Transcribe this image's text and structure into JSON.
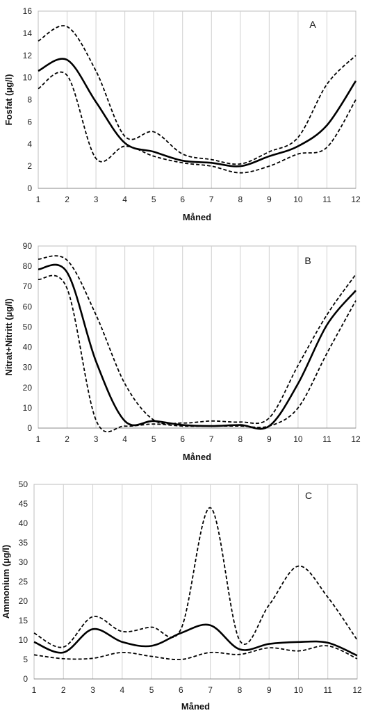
{
  "chart_data": [
    {
      "type": "line",
      "panel_label": "A",
      "xlabel": "Måned",
      "ylabel": "Fosfat (µg/l)",
      "x": [
        1,
        2,
        3,
        4,
        5,
        6,
        7,
        8,
        9,
        10,
        11,
        12
      ],
      "xlim": [
        1,
        12
      ],
      "ylim": [
        0,
        16
      ],
      "yticks": [
        0,
        2,
        4,
        6,
        8,
        10,
        12,
        14,
        16
      ],
      "grid": "vertical",
      "series": [
        {
          "style": "dashed",
          "values": [
            13.3,
            14.6,
            10.6,
            4.7,
            5.1,
            3.1,
            2.6,
            2.2,
            3.3,
            4.6,
            9.4,
            12.0
          ]
        },
        {
          "style": "solid",
          "values": [
            10.6,
            11.6,
            7.8,
            4.1,
            3.3,
            2.5,
            2.3,
            2.0,
            2.9,
            3.8,
            5.7,
            9.7
          ]
        },
        {
          "style": "dashed",
          "values": [
            9.0,
            10.2,
            2.7,
            3.8,
            2.9,
            2.3,
            2.0,
            1.4,
            2.0,
            3.1,
            3.7,
            8.0
          ]
        }
      ]
    },
    {
      "type": "line",
      "panel_label": "B",
      "xlabel": "Måned",
      "ylabel": "Nitrat+Nitritt (µg/l)",
      "x": [
        1,
        2,
        3,
        4,
        5,
        6,
        7,
        8,
        9,
        10,
        11,
        12
      ],
      "xlim": [
        1,
        12
      ],
      "ylim": [
        0,
        90
      ],
      "yticks": [
        0,
        10,
        20,
        30,
        40,
        50,
        60,
        70,
        80,
        90
      ],
      "grid": "vertical",
      "series": [
        {
          "style": "dashed",
          "values": [
            83.5,
            83.0,
            56.0,
            22.0,
            4.0,
            2.5,
            3.5,
            3.0,
            5.0,
            31.0,
            56.0,
            76.0
          ]
        },
        {
          "style": "solid",
          "values": [
            78.5,
            77.0,
            33.0,
            3.5,
            3.5,
            1.5,
            1.0,
            1.5,
            1.0,
            22.0,
            51.0,
            68.0
          ]
        },
        {
          "style": "dashed",
          "values": [
            73.5,
            69.0,
            4.0,
            1.0,
            2.0,
            1.0,
            1.0,
            1.0,
            1.0,
            10.0,
            37.0,
            63.0
          ]
        }
      ]
    },
    {
      "type": "line",
      "panel_label": "C",
      "xlabel": "Måned",
      "ylabel": "Ammonium (µg/l)",
      "x": [
        1,
        2,
        3,
        4,
        5,
        6,
        7,
        8,
        9,
        10,
        11,
        12
      ],
      "xlim": [
        1,
        12
      ],
      "ylim": [
        0,
        50
      ],
      "yticks": [
        0,
        5,
        10,
        15,
        20,
        25,
        30,
        35,
        40,
        45,
        50
      ],
      "grid": "vertical",
      "series": [
        {
          "style": "dashed",
          "values": [
            11.8,
            8.2,
            16.0,
            12.2,
            13.3,
            12.8,
            44.0,
            9.9,
            19.0,
            29.0,
            21.0,
            10.0
          ]
        },
        {
          "style": "solid",
          "values": [
            9.5,
            6.8,
            12.8,
            9.5,
            8.5,
            11.8,
            13.8,
            7.6,
            9.0,
            9.5,
            9.3,
            6.0
          ]
        },
        {
          "style": "dashed",
          "values": [
            6.2,
            5.2,
            5.3,
            6.8,
            5.8,
            5.0,
            6.8,
            6.3,
            8.0,
            7.2,
            8.5,
            5.2
          ]
        }
      ]
    }
  ]
}
